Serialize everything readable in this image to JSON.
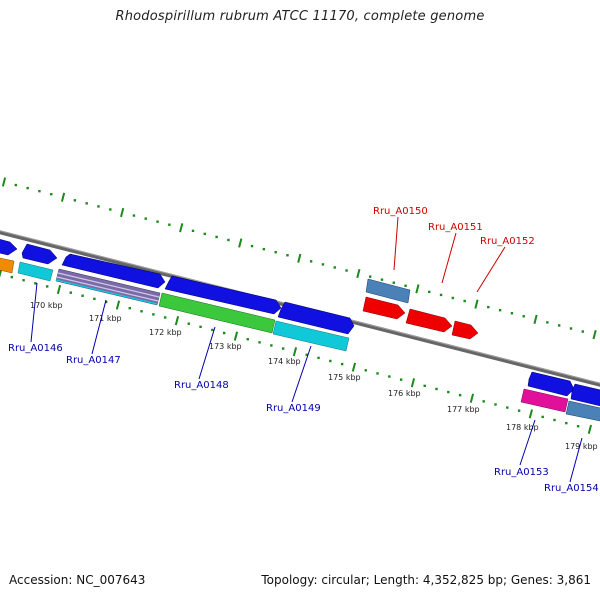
{
  "title": "Rhodospirillum rubrum ATCC 11170, complete genome",
  "footer": {
    "accession": "Accession: NC_007643",
    "summary": "Topology: circular; Length: 4,352,825 bp; Genes: 3,861"
  },
  "colors": {
    "forward_blue": "#1010e0",
    "steel_blue": "#4a82b8",
    "red": "#ee0000",
    "cyan": "#10c8d8",
    "green": "#3cc83c",
    "magenta": "#e0109a",
    "orange": "#f08a00",
    "tick_green": "#1a8a1a",
    "label_blue": "#0000aa",
    "label_red": "#cc0000"
  },
  "scale_ticks": [
    "170 kbp",
    "171 kbp",
    "172 kbp",
    "173 kbp",
    "174 kbp",
    "175 kbp",
    "176 kbp",
    "177 kbp",
    "178 kbp",
    "179 kbp"
  ],
  "gene_labels": [
    {
      "id": "g146",
      "text": "Rru_A0146",
      "color": "#0000aa"
    },
    {
      "id": "g147",
      "text": "Rru_A0147",
      "color": "#0000aa"
    },
    {
      "id": "g148",
      "text": "Rru_A0148",
      "color": "#0000aa"
    },
    {
      "id": "g149",
      "text": "Rru_A0149",
      "color": "#0000aa"
    },
    {
      "id": "g150",
      "text": "Rru_A0150",
      "color": "#cc0000"
    },
    {
      "id": "g151",
      "text": "Rru_A0151",
      "color": "#cc0000"
    },
    {
      "id": "g152",
      "text": "Rru_A0152",
      "color": "#cc0000"
    },
    {
      "id": "g153",
      "text": "Rru_A0153",
      "color": "#0000aa"
    },
    {
      "id": "g154",
      "text": "Rru_A0154",
      "color": "#0000aa"
    }
  ]
}
